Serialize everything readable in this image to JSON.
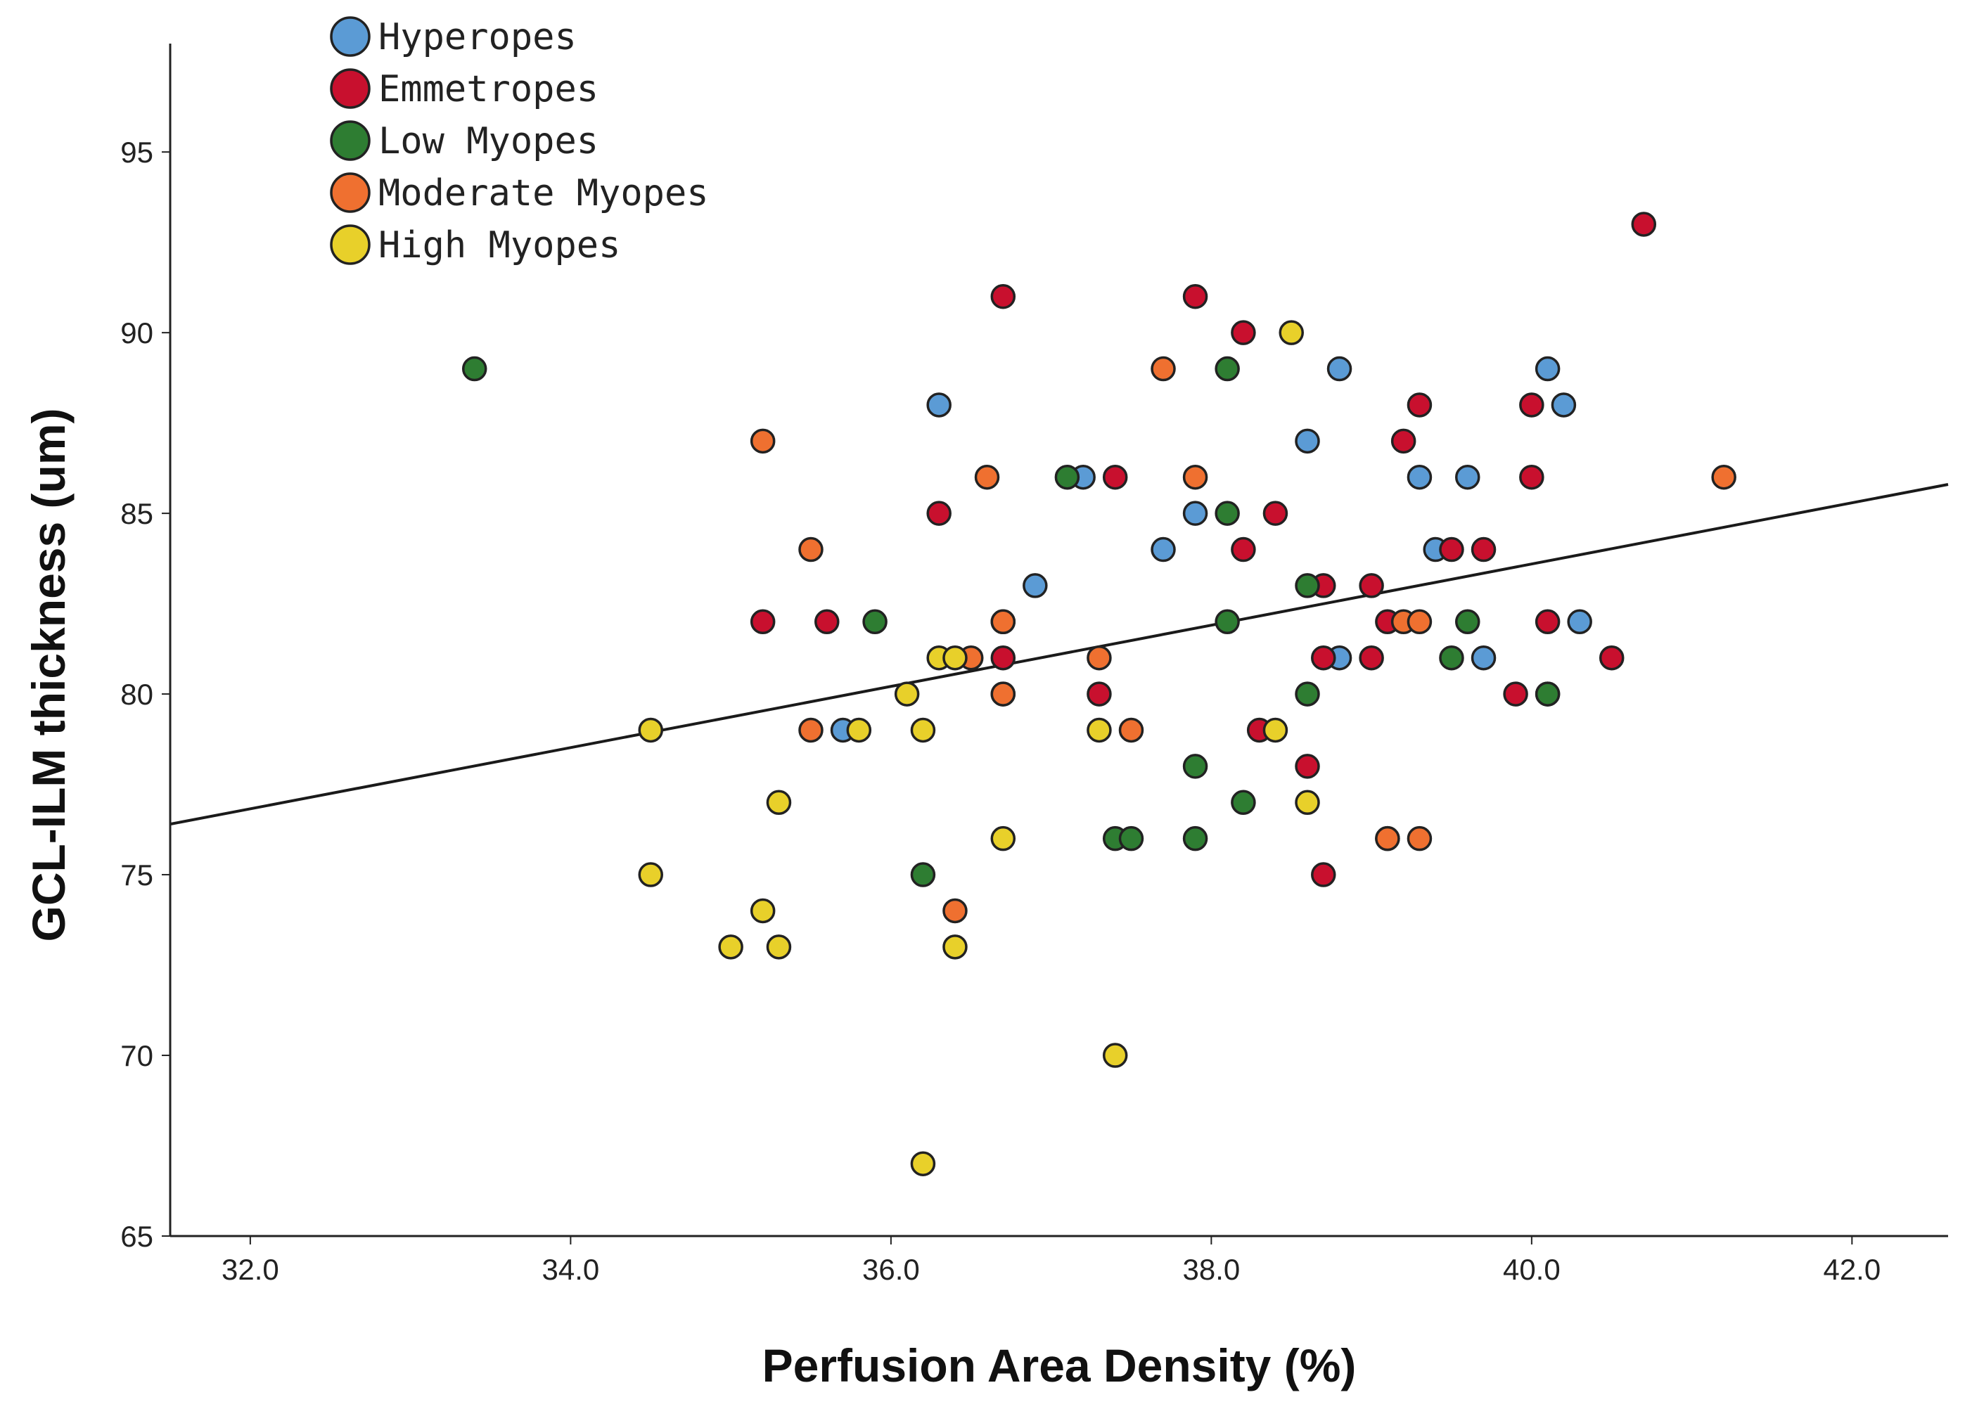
{
  "chart_data": {
    "type": "scatter",
    "title": "",
    "xlabel": "Perfusion Area Density (%)",
    "ylabel": "GCL-ILM thickness (um)",
    "xlim": [
      31.5,
      42.6
    ],
    "ylim": [
      65,
      98
    ],
    "xticks": [
      32.0,
      34.0,
      36.0,
      38.0,
      40.0,
      42.0
    ],
    "xtick_labels": [
      "32.0",
      "34.0",
      "36.0",
      "38.0",
      "40.0",
      "42.0"
    ],
    "yticks": [
      65,
      70,
      75,
      80,
      85,
      90,
      95
    ],
    "ytick_labels": [
      "65",
      "70",
      "75",
      "80",
      "85",
      "90",
      "95"
    ],
    "grid": false,
    "legend_position": "top-left",
    "fit_line": {
      "x": [
        31.5,
        42.6
      ],
      "y": [
        76.4,
        85.8
      ]
    },
    "series": [
      {
        "name": "Hyperopes",
        "color": "#5b9bd5",
        "points": [
          [
            36.3,
            88
          ],
          [
            35.7,
            79
          ],
          [
            36.7,
            82
          ],
          [
            36.9,
            83
          ],
          [
            37.2,
            86
          ],
          [
            37.7,
            84
          ],
          [
            37.9,
            85
          ],
          [
            38.6,
            87
          ],
          [
            38.8,
            89
          ],
          [
            38.8,
            81
          ],
          [
            39.3,
            86
          ],
          [
            39.4,
            84
          ],
          [
            39.6,
            86
          ],
          [
            39.7,
            81
          ],
          [
            40.1,
            89
          ],
          [
            40.2,
            88
          ],
          [
            40.3,
            82
          ]
        ]
      },
      {
        "name": "Emmetropes",
        "color": "#c8102e",
        "points": [
          [
            35.2,
            82
          ],
          [
            35.6,
            82
          ],
          [
            36.3,
            85
          ],
          [
            36.7,
            91
          ],
          [
            36.7,
            81
          ],
          [
            37.3,
            80
          ],
          [
            37.4,
            86
          ],
          [
            37.9,
            91
          ],
          [
            38.2,
            90
          ],
          [
            38.2,
            84
          ],
          [
            38.3,
            79
          ],
          [
            38.4,
            85
          ],
          [
            38.6,
            78
          ],
          [
            38.7,
            83
          ],
          [
            38.7,
            81
          ],
          [
            38.7,
            75
          ],
          [
            39.0,
            83
          ],
          [
            39.0,
            81
          ],
          [
            39.1,
            82
          ],
          [
            39.2,
            87
          ],
          [
            39.3,
            88
          ],
          [
            39.5,
            84
          ],
          [
            39.7,
            84
          ],
          [
            39.9,
            80
          ],
          [
            40.0,
            86
          ],
          [
            40.0,
            88
          ],
          [
            40.1,
            80
          ],
          [
            40.1,
            82
          ],
          [
            40.5,
            81
          ],
          [
            40.7,
            93
          ]
        ]
      },
      {
        "name": "Low Myopes",
        "color": "#2e7d32",
        "points": [
          [
            33.4,
            89
          ],
          [
            35.9,
            82
          ],
          [
            36.2,
            75
          ],
          [
            36.7,
            80
          ],
          [
            37.1,
            86
          ],
          [
            37.4,
            76
          ],
          [
            37.5,
            76
          ],
          [
            37.9,
            76
          ],
          [
            37.9,
            78
          ],
          [
            38.1,
            82
          ],
          [
            38.1,
            85
          ],
          [
            38.1,
            89
          ],
          [
            38.2,
            77
          ],
          [
            38.6,
            80
          ],
          [
            38.6,
            83
          ],
          [
            39.1,
            76
          ],
          [
            39.5,
            81
          ],
          [
            39.6,
            82
          ],
          [
            40.1,
            80
          ]
        ]
      },
      {
        "name": "Moderate Myopes",
        "color": "#ef7030",
        "points": [
          [
            35.2,
            87
          ],
          [
            35.5,
            84
          ],
          [
            35.5,
            79
          ],
          [
            36.4,
            74
          ],
          [
            36.5,
            81
          ],
          [
            36.6,
            86
          ],
          [
            36.7,
            80
          ],
          [
            36.7,
            82
          ],
          [
            37.3,
            81
          ],
          [
            37.5,
            79
          ],
          [
            37.7,
            89
          ],
          [
            37.9,
            86
          ],
          [
            39.1,
            76
          ],
          [
            39.2,
            82
          ],
          [
            39.3,
            82
          ],
          [
            39.3,
            76
          ],
          [
            41.2,
            86
          ]
        ]
      },
      {
        "name": "High Myopes",
        "color": "#e8d02a",
        "points": [
          [
            34.5,
            79
          ],
          [
            34.5,
            75
          ],
          [
            35.0,
            73
          ],
          [
            35.2,
            74
          ],
          [
            35.3,
            77
          ],
          [
            35.3,
            73
          ],
          [
            35.8,
            79
          ],
          [
            36.1,
            80
          ],
          [
            36.2,
            79
          ],
          [
            36.2,
            67
          ],
          [
            36.3,
            81
          ],
          [
            36.4,
            81
          ],
          [
            36.4,
            73
          ],
          [
            36.7,
            76
          ],
          [
            37.3,
            79
          ],
          [
            37.4,
            70
          ],
          [
            38.4,
            79
          ],
          [
            38.5,
            90
          ],
          [
            38.6,
            77
          ]
        ]
      }
    ]
  }
}
